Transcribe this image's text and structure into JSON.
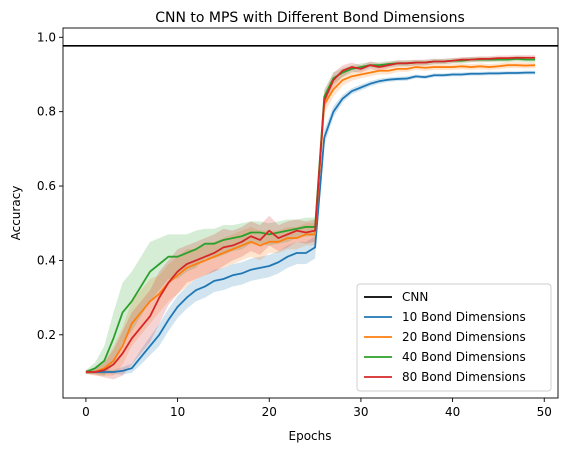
{
  "chart_data": {
    "type": "line",
    "title": "CNN to MPS with Different Bond Dimensions",
    "xlabel": "Epochs",
    "ylabel": "Accuracy",
    "xlim": [
      -2.5,
      51.5
    ],
    "ylim": [
      0.03,
      1.025
    ],
    "xticks": [
      0,
      10,
      20,
      30,
      40,
      50
    ],
    "yticks": [
      0.2,
      0.4,
      0.6,
      0.8,
      1.0
    ],
    "xtick_labels": [
      "0",
      "10",
      "20",
      "30",
      "40",
      "50"
    ],
    "ytick_labels": [
      "0.2",
      "0.4",
      "0.6",
      "0.8",
      "1.0"
    ],
    "legend_position": "lower-right",
    "reference_line": {
      "name": "CNN",
      "y": 0.977,
      "color": "#000000"
    },
    "x": [
      0,
      1,
      2,
      3,
      4,
      5,
      6,
      7,
      8,
      9,
      10,
      11,
      12,
      13,
      14,
      15,
      16,
      17,
      18,
      19,
      20,
      21,
      22,
      23,
      24,
      25,
      26,
      27,
      28,
      29,
      30,
      31,
      32,
      33,
      34,
      35,
      36,
      37,
      38,
      39,
      40,
      41,
      42,
      43,
      44,
      45,
      46,
      47,
      48,
      49
    ],
    "series": [
      {
        "name": "10 Bond Dimensions",
        "color": "#1f77b4",
        "values": [
          0.1,
          0.1,
          0.1,
          0.1,
          0.103,
          0.11,
          0.14,
          0.17,
          0.2,
          0.24,
          0.275,
          0.3,
          0.32,
          0.33,
          0.345,
          0.35,
          0.36,
          0.365,
          0.375,
          0.38,
          0.385,
          0.395,
          0.41,
          0.42,
          0.42,
          0.435,
          0.73,
          0.8,
          0.835,
          0.855,
          0.865,
          0.875,
          0.882,
          0.886,
          0.888,
          0.889,
          0.895,
          0.893,
          0.898,
          0.898,
          0.9,
          0.9,
          0.902,
          0.902,
          0.903,
          0.903,
          0.904,
          0.904,
          0.905,
          0.905
        ],
        "band": [
          0.005,
          0.005,
          0.005,
          0.006,
          0.01,
          0.012,
          0.02,
          0.025,
          0.03,
          0.03,
          0.03,
          0.03,
          0.03,
          0.03,
          0.03,
          0.03,
          0.03,
          0.03,
          0.03,
          0.03,
          0.03,
          0.03,
          0.03,
          0.03,
          0.03,
          0.03,
          0.02,
          0.015,
          0.01,
          0.008,
          0.008,
          0.007,
          0.007,
          0.006,
          0.006,
          0.006,
          0.005,
          0.005,
          0.005,
          0.005,
          0.005,
          0.005,
          0.005,
          0.005,
          0.005,
          0.005,
          0.005,
          0.005,
          0.005,
          0.005
        ]
      },
      {
        "name": "20 Bond Dimensions",
        "color": "#ff7f0e",
        "values": [
          0.1,
          0.1,
          0.11,
          0.13,
          0.17,
          0.23,
          0.26,
          0.29,
          0.31,
          0.34,
          0.36,
          0.38,
          0.39,
          0.4,
          0.41,
          0.42,
          0.43,
          0.44,
          0.45,
          0.44,
          0.45,
          0.45,
          0.46,
          0.46,
          0.47,
          0.47,
          0.82,
          0.86,
          0.885,
          0.895,
          0.9,
          0.905,
          0.91,
          0.91,
          0.915,
          0.915,
          0.92,
          0.918,
          0.92,
          0.92,
          0.92,
          0.922,
          0.92,
          0.922,
          0.92,
          0.922,
          0.925,
          0.925,
          0.924,
          0.925
        ],
        "band": [
          0.005,
          0.01,
          0.02,
          0.04,
          0.05,
          0.06,
          0.06,
          0.06,
          0.05,
          0.05,
          0.05,
          0.05,
          0.04,
          0.04,
          0.04,
          0.04,
          0.04,
          0.04,
          0.04,
          0.04,
          0.03,
          0.03,
          0.03,
          0.03,
          0.03,
          0.03,
          0.025,
          0.02,
          0.015,
          0.012,
          0.01,
          0.01,
          0.01,
          0.01,
          0.008,
          0.008,
          0.008,
          0.008,
          0.008,
          0.008,
          0.008,
          0.008,
          0.008,
          0.008,
          0.008,
          0.008,
          0.008,
          0.008,
          0.008,
          0.008
        ]
      },
      {
        "name": "40 Bond Dimensions",
        "color": "#2ca02c",
        "values": [
          0.1,
          0.11,
          0.13,
          0.19,
          0.26,
          0.29,
          0.33,
          0.37,
          0.39,
          0.41,
          0.41,
          0.42,
          0.43,
          0.445,
          0.445,
          0.455,
          0.46,
          0.465,
          0.475,
          0.475,
          0.47,
          0.475,
          0.48,
          0.485,
          0.49,
          0.49,
          0.84,
          0.89,
          0.905,
          0.915,
          0.92,
          0.925,
          0.925,
          0.928,
          0.93,
          0.93,
          0.932,
          0.932,
          0.935,
          0.935,
          0.937,
          0.937,
          0.94,
          0.94,
          0.94,
          0.94,
          0.94,
          0.942,
          0.94,
          0.94
        ],
        "band": [
          0.005,
          0.015,
          0.04,
          0.07,
          0.08,
          0.08,
          0.08,
          0.08,
          0.07,
          0.06,
          0.06,
          0.05,
          0.05,
          0.04,
          0.04,
          0.04,
          0.035,
          0.035,
          0.03,
          0.03,
          0.03,
          0.03,
          0.03,
          0.025,
          0.025,
          0.025,
          0.02,
          0.015,
          0.012,
          0.01,
          0.01,
          0.008,
          0.008,
          0.008,
          0.008,
          0.008,
          0.007,
          0.007,
          0.007,
          0.007,
          0.007,
          0.007,
          0.007,
          0.007,
          0.007,
          0.007,
          0.007,
          0.007,
          0.007,
          0.007
        ]
      },
      {
        "name": "80 Bond Dimensions",
        "color": "#d62728",
        "values": [
          0.1,
          0.1,
          0.105,
          0.12,
          0.15,
          0.19,
          0.22,
          0.25,
          0.3,
          0.34,
          0.37,
          0.39,
          0.4,
          0.41,
          0.42,
          0.435,
          0.44,
          0.45,
          0.465,
          0.455,
          0.48,
          0.46,
          0.47,
          0.48,
          0.475,
          0.48,
          0.83,
          0.885,
          0.91,
          0.92,
          0.915,
          0.925,
          0.92,
          0.925,
          0.93,
          0.93,
          0.932,
          0.932,
          0.935,
          0.935,
          0.937,
          0.94,
          0.94,
          0.942,
          0.942,
          0.944,
          0.944,
          0.945,
          0.945,
          0.945
        ],
        "band": [
          0.005,
          0.008,
          0.02,
          0.04,
          0.06,
          0.07,
          0.07,
          0.07,
          0.07,
          0.06,
          0.06,
          0.05,
          0.05,
          0.05,
          0.05,
          0.05,
          0.04,
          0.04,
          0.04,
          0.04,
          0.04,
          0.035,
          0.035,
          0.03,
          0.03,
          0.03,
          0.025,
          0.02,
          0.015,
          0.012,
          0.01,
          0.01,
          0.01,
          0.008,
          0.008,
          0.008,
          0.008,
          0.008,
          0.007,
          0.007,
          0.007,
          0.007,
          0.007,
          0.007,
          0.007,
          0.007,
          0.007,
          0.007,
          0.007,
          0.007
        ]
      }
    ]
  }
}
